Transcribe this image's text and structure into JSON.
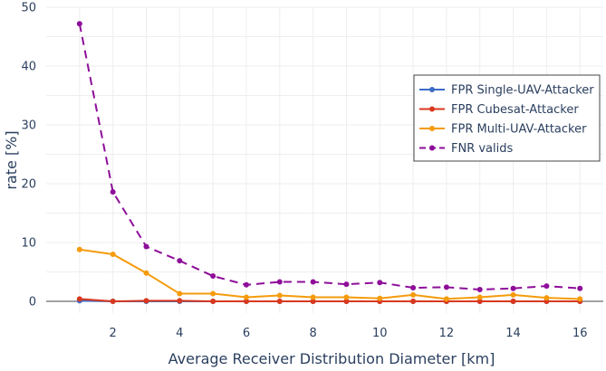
{
  "chart_data": {
    "type": "line",
    "title": "",
    "xlabel": "Average Receiver Distribution Diameter [km]",
    "ylabel": "rate [%]",
    "xlim": [
      0.0,
      16.7
    ],
    "ylim": [
      -2,
      50
    ],
    "xticks": [
      2,
      4,
      6,
      8,
      10,
      12,
      14,
      16
    ],
    "yticks": [
      0,
      10,
      20,
      30,
      40,
      50
    ],
    "grid": true,
    "legend_position": "top-right",
    "x": [
      1,
      2,
      3,
      4,
      5,
      6,
      7,
      8,
      9,
      10,
      11,
      12,
      13,
      14,
      15,
      16
    ],
    "series": [
      {
        "name": "FPR Single-UAV-Attacker",
        "color": "#3d6bc7",
        "dash": "solid",
        "values": [
          0.1,
          0.0,
          0.0,
          0.0,
          0.0,
          0.0,
          0.0,
          0.0,
          0.0,
          0.0,
          0.0,
          0.0,
          0.0,
          0.0,
          0.0,
          0.0
        ]
      },
      {
        "name": "FPR Cubesat-Attacker",
        "color": "#d9381e",
        "dash": "solid",
        "values": [
          0.4,
          0.0,
          0.1,
          0.1,
          0.0,
          0.0,
          0.0,
          0.0,
          0.0,
          0.0,
          0.0,
          0.0,
          0.0,
          0.0,
          0.0,
          0.0
        ]
      },
      {
        "name": "FPR Multi-UAV-Attacker",
        "color": "#f59b0c",
        "dash": "solid",
        "values": [
          8.8,
          8.0,
          4.8,
          1.3,
          1.3,
          0.7,
          1.0,
          0.7,
          0.7,
          0.5,
          1.1,
          0.4,
          0.7,
          1.1,
          0.6,
          0.4
        ]
      },
      {
        "name": "FNR valids",
        "color": "#8e0e99",
        "dash": "dash",
        "values": [
          47.2,
          18.6,
          9.3,
          6.9,
          4.3,
          2.8,
          3.3,
          3.3,
          2.9,
          3.2,
          2.3,
          2.4,
          2.0,
          2.2,
          2.6,
          2.2
        ]
      }
    ]
  }
}
